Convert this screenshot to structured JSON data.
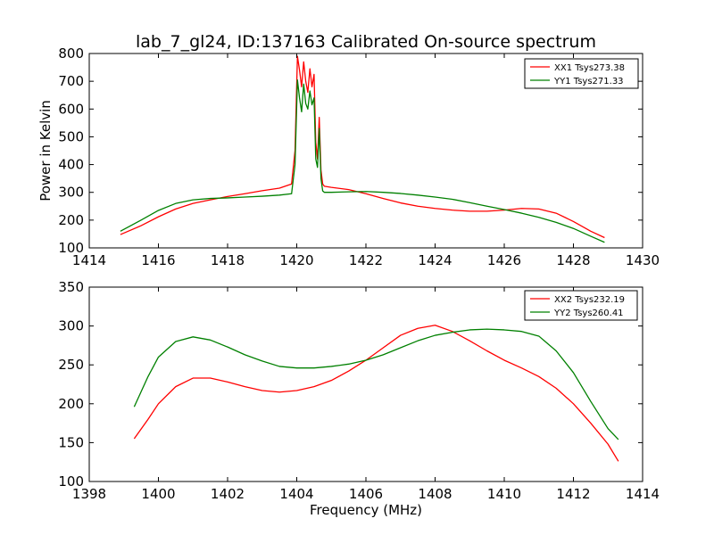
{
  "figure": {
    "title": "lab_7_gl24, ID:137163 Calibrated On-source spectrum"
  },
  "chart_data": [
    {
      "type": "line",
      "title": "lab_7_gl24, ID:137163 Calibrated On-source spectrum",
      "xlabel": "",
      "ylabel": "Power in Kelvin",
      "xlim": [
        1414,
        1430
      ],
      "ylim": [
        100,
        800
      ],
      "xticks": [
        1414,
        1416,
        1418,
        1420,
        1422,
        1424,
        1426,
        1428,
        1430
      ],
      "yticks": [
        100,
        200,
        300,
        400,
        500,
        600,
        700,
        800
      ],
      "legend_position": "top-right",
      "series": [
        {
          "name": "XX1 Tsys273.38",
          "color": "#ff0000",
          "x": [
            1414.9,
            1415.5,
            1416.0,
            1416.5,
            1417.0,
            1417.5,
            1418.0,
            1418.5,
            1419.0,
            1419.5,
            1419.85,
            1419.95,
            1420.02,
            1420.08,
            1420.14,
            1420.2,
            1420.26,
            1420.32,
            1420.38,
            1420.44,
            1420.5,
            1420.55,
            1420.6,
            1420.65,
            1420.7,
            1420.75,
            1420.8,
            1420.9,
            1421.0,
            1421.5,
            1422.0,
            1422.5,
            1423.0,
            1423.5,
            1424.0,
            1424.5,
            1425.0,
            1425.5,
            1426.0,
            1426.5,
            1427.0,
            1427.5,
            1428.0,
            1428.5,
            1428.9
          ],
          "y": [
            148,
            180,
            212,
            240,
            260,
            273,
            285,
            295,
            306,
            315,
            330,
            450,
            790,
            740,
            680,
            770,
            700,
            660,
            745,
            680,
            725,
            480,
            420,
            570,
            380,
            330,
            322,
            320,
            318,
            310,
            295,
            278,
            262,
            250,
            242,
            236,
            232,
            232,
            236,
            242,
            240,
            225,
            195,
            160,
            137
          ]
        },
        {
          "name": "YY1 Tsys271.33",
          "color": "#008000",
          "x": [
            1414.9,
            1415.5,
            1416.0,
            1416.5,
            1417.0,
            1417.5,
            1418.0,
            1418.5,
            1419.0,
            1419.5,
            1419.85,
            1419.95,
            1420.02,
            1420.08,
            1420.14,
            1420.2,
            1420.26,
            1420.32,
            1420.38,
            1420.44,
            1420.5,
            1420.55,
            1420.6,
            1420.65,
            1420.7,
            1420.75,
            1420.8,
            1420.9,
            1421.0,
            1421.5,
            1422.0,
            1422.5,
            1423.0,
            1423.5,
            1424.0,
            1424.5,
            1425.0,
            1425.5,
            1426.0,
            1426.5,
            1427.0,
            1427.5,
            1428.0,
            1428.5,
            1428.9
          ],
          "y": [
            160,
            200,
            235,
            260,
            273,
            278,
            280,
            283,
            286,
            290,
            295,
            400,
            705,
            640,
            590,
            690,
            620,
            600,
            665,
            615,
            640,
            420,
            390,
            530,
            350,
            305,
            300,
            300,
            300,
            302,
            303,
            300,
            296,
            290,
            283,
            275,
            263,
            250,
            238,
            225,
            210,
            192,
            170,
            142,
            120
          ]
        }
      ]
    },
    {
      "type": "line",
      "title": "",
      "xlabel": "Frequency (MHz)",
      "ylabel": "",
      "xlim": [
        1398,
        1414
      ],
      "ylim": [
        100,
        350
      ],
      "xticks": [
        1398,
        1400,
        1402,
        1404,
        1406,
        1408,
        1410,
        1412,
        1414
      ],
      "yticks": [
        100,
        150,
        200,
        250,
        300,
        350
      ],
      "legend_position": "top-right",
      "series": [
        {
          "name": "XX2 Tsys232.19",
          "color": "#ff0000",
          "x": [
            1399.3,
            1399.7,
            1400.0,
            1400.5,
            1401.0,
            1401.5,
            1402.0,
            1402.5,
            1403.0,
            1403.5,
            1404.0,
            1404.5,
            1405.0,
            1405.5,
            1406.0,
            1406.5,
            1407.0,
            1407.5,
            1408.0,
            1408.5,
            1409.0,
            1409.5,
            1410.0,
            1410.5,
            1411.0,
            1411.5,
            1412.0,
            1412.5,
            1413.0,
            1413.3
          ],
          "y": [
            155,
            180,
            200,
            222,
            233,
            233,
            228,
            222,
            217,
            215,
            217,
            222,
            230,
            242,
            256,
            272,
            288,
            297,
            301,
            293,
            281,
            268,
            256,
            246,
            235,
            220,
            200,
            175,
            148,
            126
          ]
        },
        {
          "name": "YY2 Tsys260.41",
          "color": "#008000",
          "x": [
            1399.3,
            1399.7,
            1400.0,
            1400.5,
            1401.0,
            1401.5,
            1402.0,
            1402.5,
            1403.0,
            1403.5,
            1404.0,
            1404.5,
            1405.0,
            1405.5,
            1406.0,
            1406.5,
            1407.0,
            1407.5,
            1408.0,
            1408.5,
            1409.0,
            1409.5,
            1410.0,
            1410.5,
            1411.0,
            1411.5,
            1412.0,
            1412.5,
            1413.0,
            1413.3
          ],
          "y": [
            196,
            235,
            260,
            280,
            286,
            282,
            273,
            263,
            255,
            248,
            246,
            246,
            248,
            251,
            256,
            263,
            272,
            281,
            288,
            292,
            295,
            296,
            295,
            293,
            287,
            268,
            240,
            203,
            168,
            154
          ]
        }
      ]
    }
  ]
}
